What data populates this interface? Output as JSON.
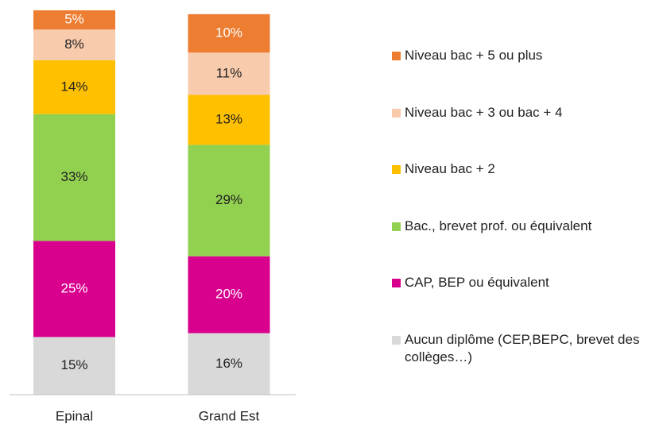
{
  "chart_data": {
    "type": "stacked_bar",
    "categories": [
      "Epinal",
      "Grand Est"
    ],
    "ylim": [
      0,
      100
    ],
    "series": [
      {
        "name": "Aucun diplôme (CEP,BEPC, brevet des collèges…)",
        "color": "#d9d9d9",
        "label_color": "#222222",
        "values": [
          15,
          16
        ],
        "value_labels": [
          "15%",
          "16%"
        ]
      },
      {
        "name": "CAP, BEP ou équivalent",
        "color": "#d9008d",
        "label_color": "#ffffff",
        "values": [
          25,
          20
        ],
        "value_labels": [
          "25%",
          "20%"
        ]
      },
      {
        "name": "Bac., brevet prof. ou équivalent",
        "color": "#92d050",
        "label_color": "#222222",
        "values": [
          33,
          29
        ],
        "value_labels": [
          "33%",
          "29%"
        ]
      },
      {
        "name": "Niveau bac + 2",
        "color": "#ffc000",
        "label_color": "#222222",
        "values": [
          14,
          13
        ],
        "value_labels": [
          "14%",
          "13%"
        ]
      },
      {
        "name": "Niveau bac + 3 ou bac + 4",
        "color": "#f8cbad",
        "label_color": "#222222",
        "values": [
          8,
          11
        ],
        "value_labels": [
          "8%",
          "11%"
        ]
      },
      {
        "name": "Niveau bac + 5 ou plus",
        "color": "#ed7d31",
        "label_color": "#ffffff",
        "values": [
          5,
          10
        ],
        "value_labels": [
          "5%",
          "10%"
        ]
      }
    ]
  }
}
